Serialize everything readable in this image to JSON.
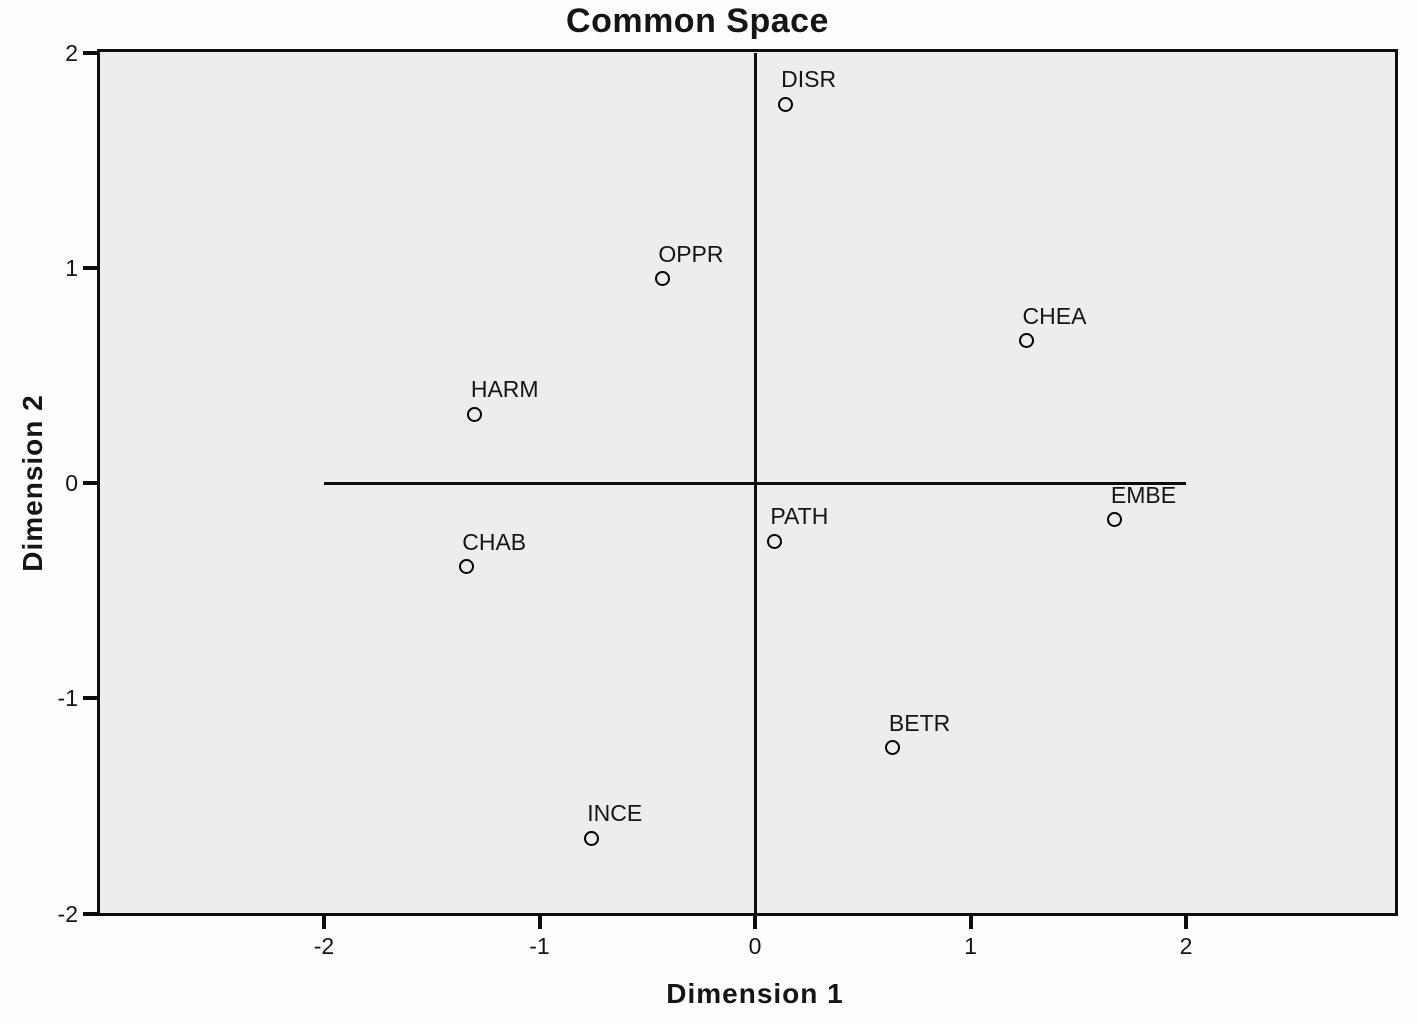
{
  "chart_data": {
    "type": "scatter",
    "title": "Common Space",
    "xlabel": "Dimension 1",
    "ylabel": "Dimension 2",
    "xlim": [
      -2,
      2
    ],
    "ylim": [
      -2,
      2
    ],
    "grid": false,
    "legend": "none",
    "marker": "open-circle",
    "reference_lines": {
      "vertical_at_x": 0,
      "horizontal_at_y": 0
    },
    "x_axis": {
      "label": "Dimension 1",
      "ticks": [
        {
          "value": -2,
          "label": "-2"
        },
        {
          "value": -1,
          "label": "-1"
        },
        {
          "value": 0,
          "label": "0"
        },
        {
          "value": 1,
          "label": "1"
        },
        {
          "value": 2,
          "label": "2"
        }
      ]
    },
    "y_axis": {
      "label": "Dimension 2",
      "ticks": [
        {
          "value": 2,
          "label": "2"
        },
        {
          "value": 1,
          "label": "1"
        },
        {
          "value": 0,
          "label": "0"
        },
        {
          "value": -1,
          "label": "-1"
        },
        {
          "value": -2,
          "label": "-2"
        }
      ]
    },
    "points": [
      {
        "label": "DISR",
        "x": 0.14,
        "y": 1.76
      },
      {
        "label": "OPPR",
        "x": -0.43,
        "y": 0.95
      },
      {
        "label": "CHEA",
        "x": 1.26,
        "y": 0.66
      },
      {
        "label": "HARM",
        "x": -1.3,
        "y": 0.32
      },
      {
        "label": "EMBE",
        "x": 1.67,
        "y": -0.17
      },
      {
        "label": "PATH",
        "x": 0.09,
        "y": -0.27
      },
      {
        "label": "CHAB",
        "x": -1.34,
        "y": -0.39
      },
      {
        "label": "BETR",
        "x": 0.64,
        "y": -1.23
      },
      {
        "label": "INCE",
        "x": -0.76,
        "y": -1.65
      }
    ],
    "colors": {
      "plot_background": "#ededed",
      "axis_color": "#0d0d0d",
      "text_color": "#151515",
      "marker_stroke": "#000000",
      "page_background": "#fdfdfd"
    }
  }
}
